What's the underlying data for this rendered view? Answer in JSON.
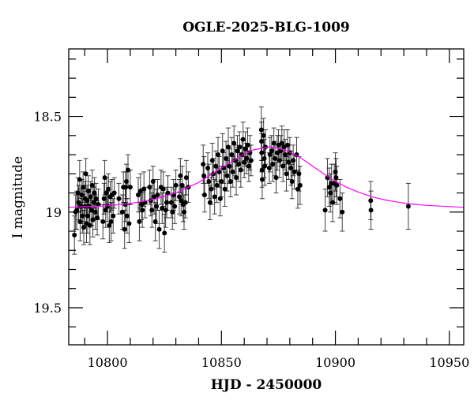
{
  "chart_data": {
    "type": "scatter",
    "title": "OGLE-2025-BLG-1009",
    "xlabel": "HJD - 2450000",
    "ylabel": "I magnitude",
    "xlim": [
      10783,
      10956.3
    ],
    "ylim": [
      19.694,
      18.147
    ],
    "y_inverted": true,
    "xticks": [
      10800,
      10850,
      10900,
      10950
    ],
    "xtick_labels": [
      "10800",
      "10850",
      "10900",
      "10950"
    ],
    "x_minor_step": 10,
    "yticks": [
      18.5,
      19,
      19.5
    ],
    "ytick_labels": [
      "18.5",
      "19",
      "19.5"
    ],
    "y_minor_step": 0.1,
    "grid": false,
    "colors": {
      "points": "#000000",
      "errorbars": "#000000",
      "model": "#ff00ff"
    },
    "points": [
      [
        10785.5,
        19.12,
        0.1
      ],
      [
        10786,
        19.0,
        0.09
      ],
      [
        10786.5,
        18.99,
        0.1
      ],
      [
        10787,
        18.9,
        0.08
      ],
      [
        10787.3,
        18.95,
        0.09
      ],
      [
        10787.8,
        18.83,
        0.1
      ],
      [
        10788,
        19.05,
        0.1
      ],
      [
        10788.3,
        18.97,
        0.09
      ],
      [
        10788.8,
        18.91,
        0.08
      ],
      [
        10789,
        19.02,
        0.09
      ],
      [
        10789.3,
        18.87,
        0.08
      ],
      [
        10789.6,
        19.08,
        0.09
      ],
      [
        10790,
        18.97,
        0.08
      ],
      [
        10790.2,
        18.93,
        0.09
      ],
      [
        10790.5,
        18.8,
        0.08
      ],
      [
        10790.8,
        19.06,
        0.1
      ],
      [
        10791,
        18.94,
        0.08
      ],
      [
        10791.3,
        19.02,
        0.09
      ],
      [
        10791.6,
        18.89,
        0.08
      ],
      [
        10792,
        18.97,
        0.09
      ],
      [
        10792.3,
        19.07,
        0.1
      ],
      [
        10792.6,
        18.92,
        0.08
      ],
      [
        10793,
        18.99,
        0.08
      ],
      [
        10793.3,
        18.86,
        0.08
      ],
      [
        10793.6,
        19.04,
        0.09
      ],
      [
        10794,
        18.95,
        0.08
      ],
      [
        10794.3,
        18.9,
        0.08
      ],
      [
        10794.7,
        19.0,
        0.09
      ],
      [
        10795,
        18.93,
        0.08
      ],
      [
        10795.5,
        19.03,
        0.09
      ],
      [
        10796,
        18.96,
        0.08
      ],
      [
        10798,
        19.05,
        0.09
      ],
      [
        10798.5,
        18.93,
        0.08
      ],
      [
        10798.8,
        18.82,
        0.09
      ],
      [
        10799.2,
        18.99,
        0.09
      ],
      [
        10799.6,
        18.9,
        0.08
      ],
      [
        10800,
        18.97,
        0.08
      ],
      [
        10800.4,
        18.88,
        0.08
      ],
      [
        10800.8,
        19.07,
        0.09
      ],
      [
        10801.2,
        18.92,
        0.08
      ],
      [
        10801.6,
        19.05,
        0.1
      ],
      [
        10802,
        18.91,
        0.08
      ],
      [
        10802.5,
        19.02,
        0.09
      ],
      [
        10803,
        18.9,
        0.08
      ],
      [
        10805,
        18.93,
        0.08
      ],
      [
        10806.5,
        19.0,
        0.09
      ],
      [
        10807,
        18.87,
        0.08
      ],
      [
        10807.5,
        19.09,
        0.1
      ],
      [
        10807.8,
        18.96,
        0.09
      ],
      [
        10808,
        18.87,
        0.08
      ],
      [
        10808.3,
        18.84,
        0.09
      ],
      [
        10808.6,
        19.02,
        0.09
      ],
      [
        10809,
        18.78,
        0.08
      ],
      [
        10809.5,
        19.06,
        0.1
      ],
      [
        10810,
        18.87,
        0.09
      ],
      [
        10813.5,
        18.91,
        0.09
      ],
      [
        10814,
        19.05,
        0.1
      ],
      [
        10814.5,
        18.89,
        0.09
      ],
      [
        10815,
        18.96,
        0.08
      ],
      [
        10815.3,
        18.99,
        0.09
      ],
      [
        10816,
        18.88,
        0.09
      ],
      [
        10816.5,
        18.95,
        0.08
      ],
      [
        10818.5,
        18.87,
        0.09
      ],
      [
        10819,
        18.94,
        0.08
      ],
      [
        10819.5,
        18.99,
        0.09
      ],
      [
        10820,
        18.84,
        0.08
      ],
      [
        10820.5,
        18.92,
        0.09
      ],
      [
        10821,
        19.05,
        0.1
      ],
      [
        10821.5,
        18.97,
        0.09
      ],
      [
        10822,
        18.91,
        0.08
      ],
      [
        10822.7,
        19.09,
        0.1
      ],
      [
        10823.5,
        18.87,
        0.09
      ],
      [
        10824,
        18.98,
        0.08
      ],
      [
        10824.5,
        18.88,
        0.09
      ],
      [
        10825,
        19.11,
        0.1
      ],
      [
        10825.5,
        18.99,
        0.09
      ],
      [
        10826,
        18.95,
        0.08
      ],
      [
        10826.5,
        18.9,
        0.09
      ],
      [
        10828,
        18.95,
        0.08
      ],
      [
        10828.5,
        19.0,
        0.09
      ],
      [
        10829,
        18.91,
        0.08
      ],
      [
        10829.5,
        18.97,
        0.09
      ],
      [
        10830,
        18.86,
        0.08
      ],
      [
        10831.5,
        18.92,
        0.09
      ],
      [
        10832,
        18.81,
        0.09
      ],
      [
        10832.3,
        18.94,
        0.08
      ],
      [
        10832.8,
        18.86,
        0.1
      ],
      [
        10833.2,
        18.96,
        0.09
      ],
      [
        10833.6,
        19.0,
        0.09
      ],
      [
        10834.2,
        18.95,
        0.08
      ],
      [
        10834.6,
        18.82,
        0.09
      ],
      [
        10835.5,
        18.87,
        0.08
      ],
      [
        10842,
        18.75,
        0.1
      ],
      [
        10842.3,
        18.81,
        0.1
      ],
      [
        10842.6,
        18.91,
        0.09
      ],
      [
        10844,
        18.77,
        0.08
      ],
      [
        10844.5,
        18.84,
        0.09
      ],
      [
        10845,
        18.95,
        0.09
      ],
      [
        10845.5,
        18.88,
        0.08
      ],
      [
        10846,
        18.73,
        0.09
      ],
      [
        10846.5,
        18.8,
        0.08
      ],
      [
        10847,
        18.92,
        0.09
      ],
      [
        10847.5,
        18.76,
        0.08
      ],
      [
        10848,
        18.86,
        0.09
      ],
      [
        10848.5,
        18.7,
        0.09
      ],
      [
        10849,
        18.79,
        0.08
      ],
      [
        10849.5,
        18.93,
        0.09
      ],
      [
        10850,
        18.84,
        0.08
      ],
      [
        10850.5,
        18.68,
        0.09
      ],
      [
        10851,
        18.77,
        0.08
      ],
      [
        10851.5,
        18.88,
        0.09
      ],
      [
        10852,
        18.72,
        0.09
      ],
      [
        10852.5,
        18.81,
        0.08
      ],
      [
        10853,
        18.66,
        0.1
      ],
      [
        10853.5,
        18.76,
        0.09
      ],
      [
        10854,
        18.84,
        0.08
      ],
      [
        10854.5,
        18.7,
        0.09
      ],
      [
        10855,
        18.79,
        0.08
      ],
      [
        10855.5,
        18.64,
        0.09
      ],
      [
        10856,
        18.73,
        0.08
      ],
      [
        10856.5,
        18.82,
        0.09
      ],
      [
        10857,
        18.68,
        0.08
      ],
      [
        10857.5,
        18.75,
        0.09
      ],
      [
        10858,
        18.66,
        0.08
      ],
      [
        10858.5,
        18.78,
        0.09
      ],
      [
        10859,
        18.7,
        0.08
      ],
      [
        10859.5,
        18.62,
        0.09
      ],
      [
        10860,
        18.74,
        0.08
      ],
      [
        10860.5,
        18.67,
        0.09
      ],
      [
        10861,
        18.72,
        0.08
      ],
      [
        10861.5,
        18.65,
        0.09
      ],
      [
        10862,
        18.76,
        0.08
      ],
      [
        10862.5,
        18.69,
        0.09
      ],
      [
        10863,
        18.73,
        0.08
      ],
      [
        10867.5,
        18.57,
        0.12
      ],
      [
        10867.6,
        18.63,
        0.1
      ],
      [
        10867.7,
        18.69,
        0.1
      ],
      [
        10867.8,
        18.78,
        0.09
      ],
      [
        10867.9,
        18.83,
        0.1
      ],
      [
        10868.5,
        18.6,
        0.09
      ],
      [
        10868.8,
        18.72,
        0.1
      ],
      [
        10869,
        18.76,
        0.1
      ],
      [
        10869.3,
        18.66,
        0.09
      ],
      [
        10871,
        18.77,
        0.08
      ],
      [
        10871.3,
        18.7,
        0.09
      ],
      [
        10872,
        18.68,
        0.08
      ],
      [
        10872.5,
        18.75,
        0.09
      ],
      [
        10873,
        18.64,
        0.08
      ],
      [
        10873.5,
        18.72,
        0.09
      ],
      [
        10874,
        18.82,
        0.08
      ],
      [
        10874.5,
        18.69,
        0.09
      ],
      [
        10875,
        18.65,
        0.08
      ],
      [
        10875.5,
        18.73,
        0.09
      ],
      [
        10876,
        18.68,
        0.08
      ],
      [
        10876.5,
        18.64,
        0.09
      ],
      [
        10877,
        18.76,
        0.08
      ],
      [
        10877.5,
        18.66,
        0.09
      ],
      [
        10878,
        18.7,
        0.08
      ],
      [
        10878.5,
        18.8,
        0.09
      ],
      [
        10879,
        18.65,
        0.08
      ],
      [
        10879.5,
        18.74,
        0.09
      ],
      [
        10880,
        18.69,
        0.08
      ],
      [
        10880.5,
        18.77,
        0.09
      ],
      [
        10881,
        18.84,
        0.09
      ],
      [
        10881.5,
        18.73,
        0.08
      ],
      [
        10882,
        18.79,
        0.09
      ],
      [
        10883,
        18.7,
        0.09
      ],
      [
        10883.5,
        18.88,
        0.1
      ],
      [
        10884,
        18.8,
        0.09
      ],
      [
        10884.5,
        18.86,
        0.1
      ],
      [
        10895.5,
        18.99,
        0.11
      ],
      [
        10896.5,
        18.82,
        0.1
      ],
      [
        10897.3,
        18.87,
        0.1
      ],
      [
        10897.8,
        18.9,
        0.1
      ],
      [
        10898.3,
        18.85,
        0.1
      ],
      [
        10898.8,
        18.95,
        0.1
      ],
      [
        10899.5,
        18.85,
        0.1
      ],
      [
        10900,
        18.79,
        0.1
      ],
      [
        10900.3,
        18.82,
        0.1
      ],
      [
        10900.6,
        18.86,
        0.1
      ],
      [
        10902,
        18.93,
        0.1
      ],
      [
        10903,
        19.0,
        0.1
      ],
      [
        10915.5,
        18.94,
        0.1
      ],
      [
        10915.6,
        18.99,
        0.1
      ],
      [
        10932,
        18.97,
        0.12
      ]
    ],
    "model_curve": [
      [
        10783,
        18.975
      ],
      [
        10790,
        18.972
      ],
      [
        10800,
        18.967
      ],
      [
        10810,
        18.955
      ],
      [
        10820,
        18.935
      ],
      [
        10830,
        18.9
      ],
      [
        10840,
        18.845
      ],
      [
        10850,
        18.77
      ],
      [
        10858,
        18.71
      ],
      [
        10864,
        18.675
      ],
      [
        10871.5,
        18.658
      ],
      [
        10878,
        18.675
      ],
      [
        10884,
        18.71
      ],
      [
        10890,
        18.76
      ],
      [
        10895,
        18.8
      ],
      [
        10900,
        18.84
      ],
      [
        10905,
        18.87
      ],
      [
        10910,
        18.895
      ],
      [
        10916,
        18.92
      ],
      [
        10922,
        18.937
      ],
      [
        10931,
        18.955
      ],
      [
        10940,
        18.965
      ],
      [
        10956.3,
        18.975
      ]
    ]
  }
}
